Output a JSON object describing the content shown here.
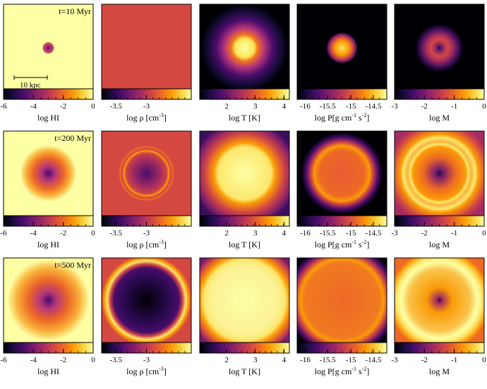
{
  "figure": {
    "colormap": [
      "#000004",
      "#1b0c41",
      "#4a0c6b",
      "#781c6d",
      "#a52c60",
      "#cf4446",
      "#ed6925",
      "#fb9b06",
      "#f7d13d",
      "#fcffa4"
    ],
    "time_labels": [
      "t=10 Myr",
      "t=200 Myr",
      "t=500 Myr"
    ],
    "scale_bar_label": "10 kpc",
    "panels": [
      {
        "key": "hi",
        "label": "log HI",
        "ticks": [
          {
            "v": "-6",
            "f": 0.0
          },
          {
            "v": "-4",
            "f": 0.333
          },
          {
            "v": "-2",
            "f": 0.667
          },
          {
            "v": "0",
            "f": 1.0
          }
        ],
        "minor_ticks": 12
      },
      {
        "key": "rho",
        "label": "log ρ [cm",
        "label_sup": "-3",
        "label_end": "]",
        "ticks": [
          {
            "v": "-3.5",
            "f": 0.16
          },
          {
            "v": "-3",
            "f": 0.5
          }
        ],
        "minor_ticks": 14
      },
      {
        "key": "t",
        "label": "log T [K]",
        "ticks": [
          {
            "v": "2",
            "f": 0.3
          },
          {
            "v": "3",
            "f": 0.62
          },
          {
            "v": "4",
            "f": 0.94
          }
        ],
        "minor_ticks": 15
      },
      {
        "key": "p",
        "label": "log P[g cm",
        "label_sup": "-1",
        "label_mid": " s",
        "label_sup2": "-2",
        "label_end": "]",
        "ticks": [
          {
            "v": "-16",
            "f": 0.09
          },
          {
            "v": "-15.5",
            "f": 0.34
          },
          {
            "v": "-15",
            "f": 0.6
          },
          {
            "v": "-14.5",
            "f": 0.85
          }
        ],
        "minor_ticks": 12
      },
      {
        "key": "m",
        "label": "log M",
        "ticks": [
          {
            "v": "-3",
            "f": 0.0
          },
          {
            "v": "-2",
            "f": 0.333
          },
          {
            "v": "-1",
            "f": 0.667
          },
          {
            "v": "0",
            "f": 1.0
          }
        ],
        "minor_ticks": 12
      }
    ]
  }
}
